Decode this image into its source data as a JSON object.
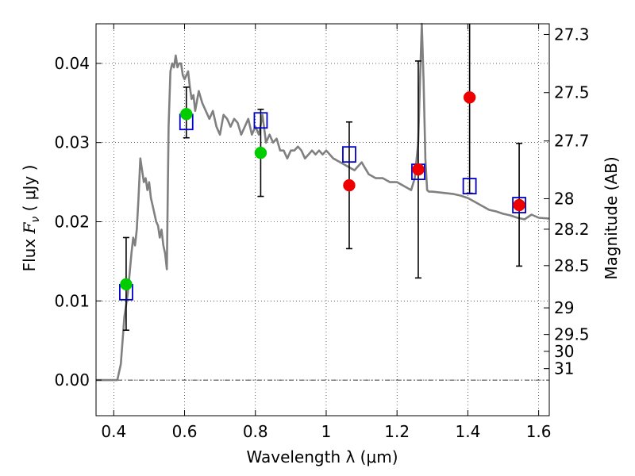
{
  "chart_data": {
    "type": "scatter",
    "xlabel": "Wavelength  λ (μm)",
    "ylabel_prefix": "Flux",
    "ylabel_symbol": "F",
    "ylabel_subscript": "ν",
    "ylabel_unit": "( μJy )",
    "y2label": "Magnitude (AB)",
    "xlim": [
      0.35,
      1.63
    ],
    "ylim": [
      -0.0045,
      0.045
    ],
    "grid": true,
    "x_ticks": [
      0.4,
      0.6,
      0.8,
      1.0,
      1.2,
      1.4,
      1.6
    ],
    "x_tick_labels": [
      "0.4",
      "0.6",
      "0.8",
      "1",
      "1.2",
      "1.4",
      "1.6"
    ],
    "y_ticks": [
      0.0,
      0.01,
      0.02,
      0.03,
      0.04
    ],
    "y_tick_labels": [
      "0.00",
      "0.01",
      "0.02",
      "0.03",
      "0.04"
    ],
    "mag_ticks": [
      27.3,
      27.5,
      27.7,
      28,
      28.2,
      28.5,
      29,
      29.5,
      30,
      31
    ],
    "mag_tick_labels": [
      "27.3",
      "27.5",
      "27.7",
      "28",
      "28.2",
      "28.5",
      "29",
      "29.5",
      "30",
      "31"
    ],
    "model_curve": {
      "color": "#808080",
      "x": [
        0.35,
        0.4,
        0.41,
        0.42,
        0.43,
        0.44,
        0.45,
        0.455,
        0.46,
        0.465,
        0.47,
        0.475,
        0.48,
        0.485,
        0.49,
        0.495,
        0.5,
        0.505,
        0.51,
        0.515,
        0.52,
        0.525,
        0.53,
        0.535,
        0.54,
        0.545,
        0.55,
        0.555,
        0.56,
        0.565,
        0.57,
        0.575,
        0.58,
        0.585,
        0.59,
        0.595,
        0.6,
        0.605,
        0.61,
        0.615,
        0.62,
        0.625,
        0.63,
        0.64,
        0.65,
        0.66,
        0.67,
        0.68,
        0.69,
        0.7,
        0.71,
        0.72,
        0.73,
        0.74,
        0.75,
        0.76,
        0.77,
        0.78,
        0.79,
        0.8,
        0.81,
        0.82,
        0.83,
        0.84,
        0.85,
        0.86,
        0.87,
        0.88,
        0.89,
        0.9,
        0.91,
        0.92,
        0.93,
        0.94,
        0.95,
        0.96,
        0.97,
        0.98,
        0.99,
        1.0,
        1.02,
        1.04,
        1.06,
        1.08,
        1.1,
        1.12,
        1.14,
        1.16,
        1.18,
        1.2,
        1.22,
        1.24,
        1.25,
        1.26,
        1.265,
        1.27,
        1.275,
        1.28,
        1.285,
        1.29,
        1.3,
        1.32,
        1.34,
        1.36,
        1.38,
        1.4,
        1.42,
        1.44,
        1.46,
        1.48,
        1.5,
        1.52,
        1.54,
        1.56,
        1.58,
        1.6,
        1.63
      ],
      "y": [
        0.0,
        0.0,
        0.0,
        0.002,
        0.008,
        0.011,
        0.016,
        0.018,
        0.017,
        0.019,
        0.023,
        0.028,
        0.0265,
        0.025,
        0.0255,
        0.024,
        0.025,
        0.023,
        0.022,
        0.021,
        0.02,
        0.0195,
        0.018,
        0.019,
        0.017,
        0.016,
        0.014,
        0.032,
        0.039,
        0.04,
        0.0395,
        0.041,
        0.0395,
        0.04,
        0.04,
        0.0385,
        0.038,
        0.0385,
        0.039,
        0.037,
        0.0355,
        0.036,
        0.034,
        0.0365,
        0.035,
        0.034,
        0.033,
        0.034,
        0.032,
        0.031,
        0.0335,
        0.033,
        0.032,
        0.033,
        0.0325,
        0.031,
        0.032,
        0.033,
        0.031,
        0.032,
        0.031,
        0.0335,
        0.03,
        0.031,
        0.03,
        0.0305,
        0.029,
        0.029,
        0.028,
        0.029,
        0.029,
        0.0295,
        0.029,
        0.028,
        0.0285,
        0.029,
        0.0285,
        0.029,
        0.0285,
        0.029,
        0.028,
        0.0275,
        0.027,
        0.0265,
        0.0275,
        0.026,
        0.0255,
        0.0255,
        0.025,
        0.025,
        0.0245,
        0.024,
        0.0255,
        0.03,
        0.038,
        0.046,
        0.038,
        0.028,
        0.024,
        0.0238,
        0.0238,
        0.0237,
        0.0236,
        0.0235,
        0.0233,
        0.023,
        0.0225,
        0.022,
        0.0215,
        0.0213,
        0.021,
        0.0208,
        0.0205,
        0.0203,
        0.0209,
        0.0205,
        0.0204
      ]
    },
    "series": [
      {
        "marker": "square-open",
        "color": "#0000cc",
        "x": [
          0.435,
          0.605,
          0.815,
          1.065,
          1.26,
          1.405,
          1.545
        ],
        "y": [
          0.0111,
          0.0326,
          0.0328,
          0.0285,
          0.0263,
          0.0245,
          0.0221
        ]
      },
      {
        "marker": "circle",
        "color": "#00cc00",
        "x": [
          0.435,
          0.605,
          0.815
        ],
        "y": [
          0.0121,
          0.0336,
          0.0287
        ]
      },
      {
        "marker": "circle",
        "color": "#ee0000",
        "x": [
          1.065,
          1.26,
          1.405,
          1.545
        ],
        "y": [
          0.0246,
          0.0266,
          0.0357,
          0.0221
        ]
      }
    ],
    "error_bars": {
      "color": "#000000",
      "x": [
        0.435,
        0.605,
        0.815,
        1.065,
        1.26,
        1.405,
        1.545
      ],
      "ylow": [
        0.0063,
        0.0306,
        0.0232,
        0.0166,
        0.0129,
        0.0236,
        0.0144
      ],
      "yhigh": [
        0.018,
        0.037,
        0.0342,
        0.0326,
        0.0403,
        0.047,
        0.0299
      ]
    }
  }
}
